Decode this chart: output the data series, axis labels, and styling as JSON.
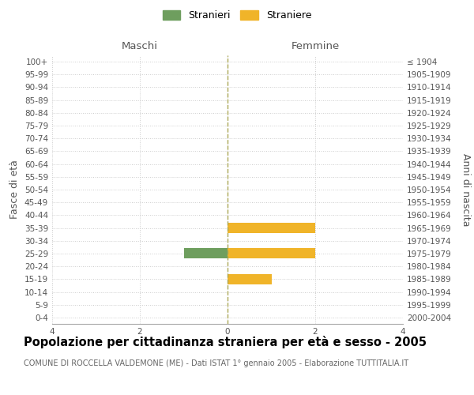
{
  "age_groups": [
    "100+",
    "95-99",
    "90-94",
    "85-89",
    "80-84",
    "75-79",
    "70-74",
    "65-69",
    "60-64",
    "55-59",
    "50-54",
    "45-49",
    "40-44",
    "35-39",
    "30-34",
    "25-29",
    "20-24",
    "15-19",
    "10-14",
    "5-9",
    "0-4"
  ],
  "birth_years": [
    "≤ 1904",
    "1905-1909",
    "1910-1914",
    "1915-1919",
    "1920-1924",
    "1925-1929",
    "1930-1934",
    "1935-1939",
    "1940-1944",
    "1945-1949",
    "1950-1954",
    "1955-1959",
    "1960-1964",
    "1965-1969",
    "1970-1974",
    "1975-1979",
    "1980-1984",
    "1985-1989",
    "1990-1994",
    "1995-1999",
    "2000-2004"
  ],
  "stranieri_maschi": [
    0,
    0,
    0,
    0,
    0,
    0,
    0,
    0,
    0,
    0,
    0,
    0,
    0,
    0,
    0,
    1,
    0,
    0,
    0,
    0,
    0
  ],
  "straniere_femmine": [
    0,
    0,
    0,
    0,
    0,
    0,
    0,
    0,
    0,
    0,
    0,
    0,
    0,
    2,
    0,
    2,
    0,
    1,
    0,
    0,
    0
  ],
  "color_maschi": "#6e9e5e",
  "color_femmine": "#f0b429",
  "xlim": [
    -4,
    4
  ],
  "xlabel_maschi": "Maschi",
  "xlabel_femmine": "Femmine",
  "ylabel_left": "Fasce di età",
  "ylabel_right": "Anni di nascita",
  "title": "Popolazione per cittadinanza straniera per età e sesso - 2005",
  "subtitle": "COMUNE DI ROCCELLA VALDEMONE (ME) - Dati ISTAT 1° gennaio 2005 - Elaborazione TUTTITALIA.IT",
  "legend_stranieri": "Stranieri",
  "legend_straniere": "Straniere",
  "background_color": "#ffffff",
  "grid_color": "#cccccc",
  "bar_height": 0.8,
  "tick_fontsize": 7.5,
  "label_fontsize": 9,
  "title_fontsize": 10.5,
  "subtitle_fontsize": 7.0
}
